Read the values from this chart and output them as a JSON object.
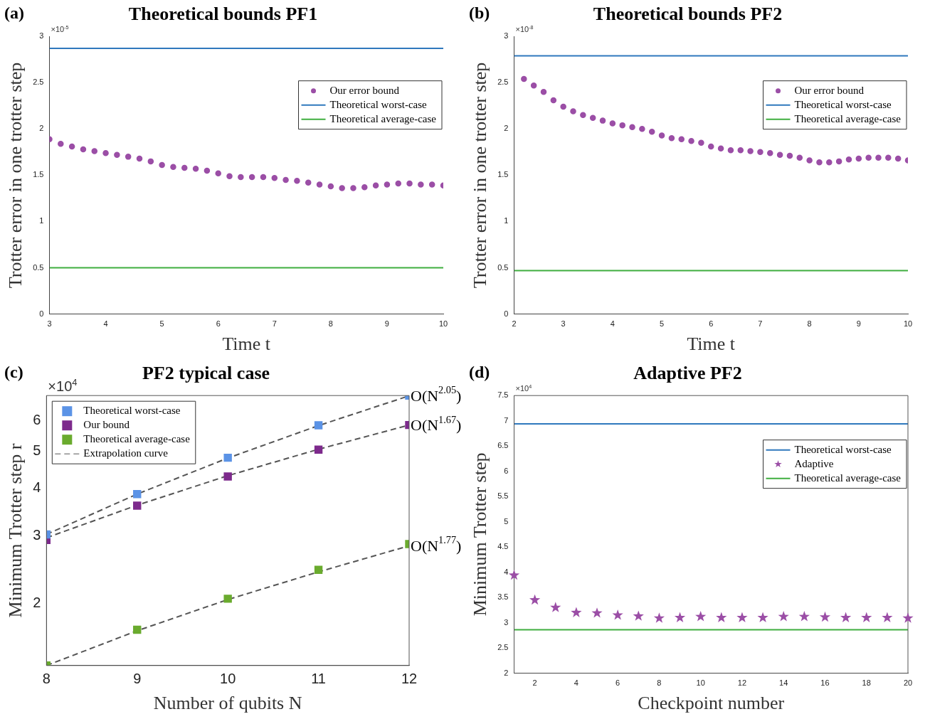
{
  "chart_data": [
    {
      "type": "scatter",
      "title": "Theoretical bounds PF1",
      "xlabel": "Time t",
      "ylabel": "Trotter error in one trotter step",
      "xlim": [
        3,
        10
      ],
      "xticks": [
        3,
        4,
        5,
        6,
        7,
        8,
        9,
        10
      ],
      "ylim": [
        0,
        3
      ],
      "yticks": [
        0,
        0.5,
        1,
        1.5,
        2,
        2.5,
        3
      ],
      "legend": "top right",
      "annotations": [
        "(a)",
        "×10$^{-5}$"
      ],
      "series": [
        {
          "name": "Our error bound",
          "type": "scatter",
          "marker": "circle",
          "color": "#9b4ea6",
          "x": [
            3,
            3.2,
            3.4,
            3.6,
            3.8,
            4,
            4.2,
            4.4,
            4.6,
            4.8,
            5,
            5.2,
            5.4,
            5.6,
            5.8,
            6,
            6.2,
            6.4,
            6.6,
            6.8,
            7,
            7.2,
            7.4,
            7.6,
            7.8,
            8,
            8.2,
            8.4,
            8.6,
            8.8,
            9,
            9.2,
            9.4,
            9.6,
            9.8,
            10
          ],
          "values": [
            1.89,
            1.84,
            1.81,
            1.78,
            1.76,
            1.74,
            1.72,
            1.7,
            1.68,
            1.65,
            1.61,
            1.59,
            1.58,
            1.57,
            1.55,
            1.52,
            1.49,
            1.48,
            1.48,
            1.48,
            1.47,
            1.45,
            1.44,
            1.42,
            1.4,
            1.38,
            1.36,
            1.36,
            1.37,
            1.39,
            1.4,
            1.41,
            1.41,
            1.4,
            1.4,
            1.39
          ]
        },
        {
          "name": "Theoretical worst-case",
          "type": "line",
          "marker": "none",
          "color": "#2f78bd",
          "x": [
            3,
            10
          ],
          "values": [
            2.87,
            2.87
          ]
        },
        {
          "name": "Theoretical average-case",
          "type": "line",
          "marker": "none",
          "color": "#3fae3f",
          "x": [
            3,
            10
          ],
          "values": [
            0.5,
            0.5
          ]
        }
      ]
    },
    {
      "type": "scatter",
      "title": "Theoretical bounds PF2",
      "xlabel": "Time t",
      "ylabel": "Trotter error in one trotter step",
      "xlim": [
        2,
        10
      ],
      "xticks": [
        2,
        3,
        4,
        5,
        6,
        7,
        8,
        9,
        10
      ],
      "ylim": [
        0,
        3
      ],
      "yticks": [
        0,
        0.5,
        1,
        1.5,
        2,
        2.5,
        3
      ],
      "legend": "top right",
      "annotations": [
        "(b)",
        "×10$^{-8}$"
      ],
      "series": [
        {
          "name": "Our error bound",
          "type": "scatter",
          "marker": "circle",
          "color": "#9b4ea6",
          "x": [
            2.2,
            2.4,
            2.6,
            2.8,
            3,
            3.2,
            3.4,
            3.6,
            3.8,
            4,
            4.2,
            4.4,
            4.6,
            4.8,
            5,
            5.2,
            5.4,
            5.6,
            5.8,
            6,
            6.2,
            6.4,
            6.6,
            6.8,
            7,
            7.2,
            7.4,
            7.6,
            7.8,
            8,
            8.2,
            8.4,
            8.6,
            8.8,
            9,
            9.2,
            9.4,
            9.6,
            9.8,
            10
          ],
          "values": [
            2.54,
            2.47,
            2.4,
            2.31,
            2.24,
            2.19,
            2.15,
            2.12,
            2.09,
            2.06,
            2.04,
            2.02,
            2.0,
            1.97,
            1.93,
            1.9,
            1.89,
            1.87,
            1.85,
            1.81,
            1.79,
            1.77,
            1.77,
            1.76,
            1.75,
            1.74,
            1.72,
            1.71,
            1.69,
            1.66,
            1.64,
            1.64,
            1.65,
            1.67,
            1.68,
            1.69,
            1.69,
            1.69,
            1.68,
            1.66
          ]
        },
        {
          "name": "Theoretical worst-case",
          "type": "line",
          "marker": "none",
          "color": "#2f78bd",
          "x": [
            2,
            10
          ],
          "values": [
            2.79,
            2.79
          ]
        },
        {
          "name": "Theoretical average-case",
          "type": "line",
          "marker": "none",
          "color": "#3fae3f",
          "x": [
            2,
            10
          ],
          "values": [
            0.47,
            0.47
          ]
        }
      ]
    },
    {
      "type": "scatter",
      "title": "PF2 typical case",
      "xlabel": "Number of qubits N",
      "ylabel": "Minimum Trotter step r",
      "log": "y",
      "xlim": [
        8,
        12
      ],
      "xticks": [
        8,
        9,
        10,
        11,
        12
      ],
      "ylim": [
        1.38,
        6.97
      ],
      "yticks": [
        2,
        3,
        4,
        5,
        6
      ],
      "legend": "top left",
      "annotations": [
        "(c)",
        "×10$^{4}$",
        "O(N$^{2.05}$)",
        "O(N$^{1.67}$)",
        "O(N$^{1.77}$)"
      ],
      "series": [
        {
          "name": "Theoretical worst-case",
          "type": "scatter",
          "marker": "square",
          "color": "#5b93e6",
          "x": [
            8,
            9,
            10,
            11,
            12
          ],
          "values": [
            3.03,
            3.86,
            4.8,
            5.83,
            6.97
          ]
        },
        {
          "name": "Our bound",
          "type": "scatter",
          "marker": "square",
          "color": "#7d2a8c",
          "x": [
            8,
            9,
            10,
            11,
            12
          ],
          "values": [
            2.93,
            3.6,
            4.29,
            5.04,
            5.84
          ]
        },
        {
          "name": "Theoretical average-case",
          "type": "scatter",
          "marker": "square",
          "color": "#6aab2e",
          "x": [
            8,
            9,
            10,
            11,
            12
          ],
          "values": [
            1.38,
            1.71,
            2.06,
            2.45,
            2.86
          ]
        },
        {
          "name": "Extrapolation curve",
          "type": "line",
          "marker": "none",
          "line_style": "dashed",
          "color": "#555555",
          "x": [
            8,
            9,
            10,
            11,
            12
          ],
          "values": [
            3.03,
            3.86,
            4.79,
            5.82,
            6.96
          ]
        },
        {
          "type": "line",
          "marker": "none",
          "line_style": "dashed",
          "color": "#555555",
          "x": [
            8,
            9,
            10,
            11,
            12
          ],
          "values": [
            2.97,
            3.61,
            4.31,
            5.05,
            5.84
          ]
        },
        {
          "type": "line",
          "marker": "none",
          "line_style": "dashed",
          "color": "#555555",
          "x": [
            8,
            9,
            10,
            11,
            12
          ],
          "values": [
            1.38,
            1.7,
            2.05,
            2.42,
            2.83
          ]
        }
      ]
    },
    {
      "type": "scatter",
      "title": "Adaptive PF2",
      "xlabel": "Checkpoint number",
      "ylabel": "Minimum Trotter step",
      "xlim": [
        1,
        20
      ],
      "xticks": [
        2,
        4,
        6,
        8,
        10,
        12,
        14,
        16,
        18,
        20
      ],
      "ylim": [
        2,
        7.5
      ],
      "yticks": [
        2,
        2.5,
        3,
        3.5,
        4,
        4.5,
        5,
        5.5,
        6,
        6.5,
        7,
        7.5
      ],
      "legend": "top right",
      "annotations": [
        "(d)",
        "×10$^{4}$"
      ],
      "series": [
        {
          "name": "Theoretical worst-case",
          "type": "line",
          "marker": "none",
          "color": "#2f78bd",
          "x": [
            1,
            20
          ],
          "values": [
            6.94,
            6.94
          ]
        },
        {
          "name": "Adaptive",
          "type": "scatter",
          "marker": "star",
          "color": "#9b4ea6",
          "x": [
            1,
            2,
            3,
            4,
            5,
            6,
            7,
            8,
            9,
            10,
            11,
            12,
            13,
            14,
            15,
            16,
            17,
            18,
            19,
            20
          ],
          "values": [
            3.94,
            3.45,
            3.3,
            3.2,
            3.19,
            3.15,
            3.13,
            3.09,
            3.1,
            3.12,
            3.1,
            3.1,
            3.1,
            3.12,
            3.12,
            3.11,
            3.1,
            3.1,
            3.1,
            3.09
          ]
        },
        {
          "name": "Theoretical average-case",
          "type": "line",
          "marker": "none",
          "color": "#3fae3f",
          "x": [
            1,
            20
          ],
          "values": [
            2.86,
            2.86
          ]
        }
      ]
    }
  ]
}
